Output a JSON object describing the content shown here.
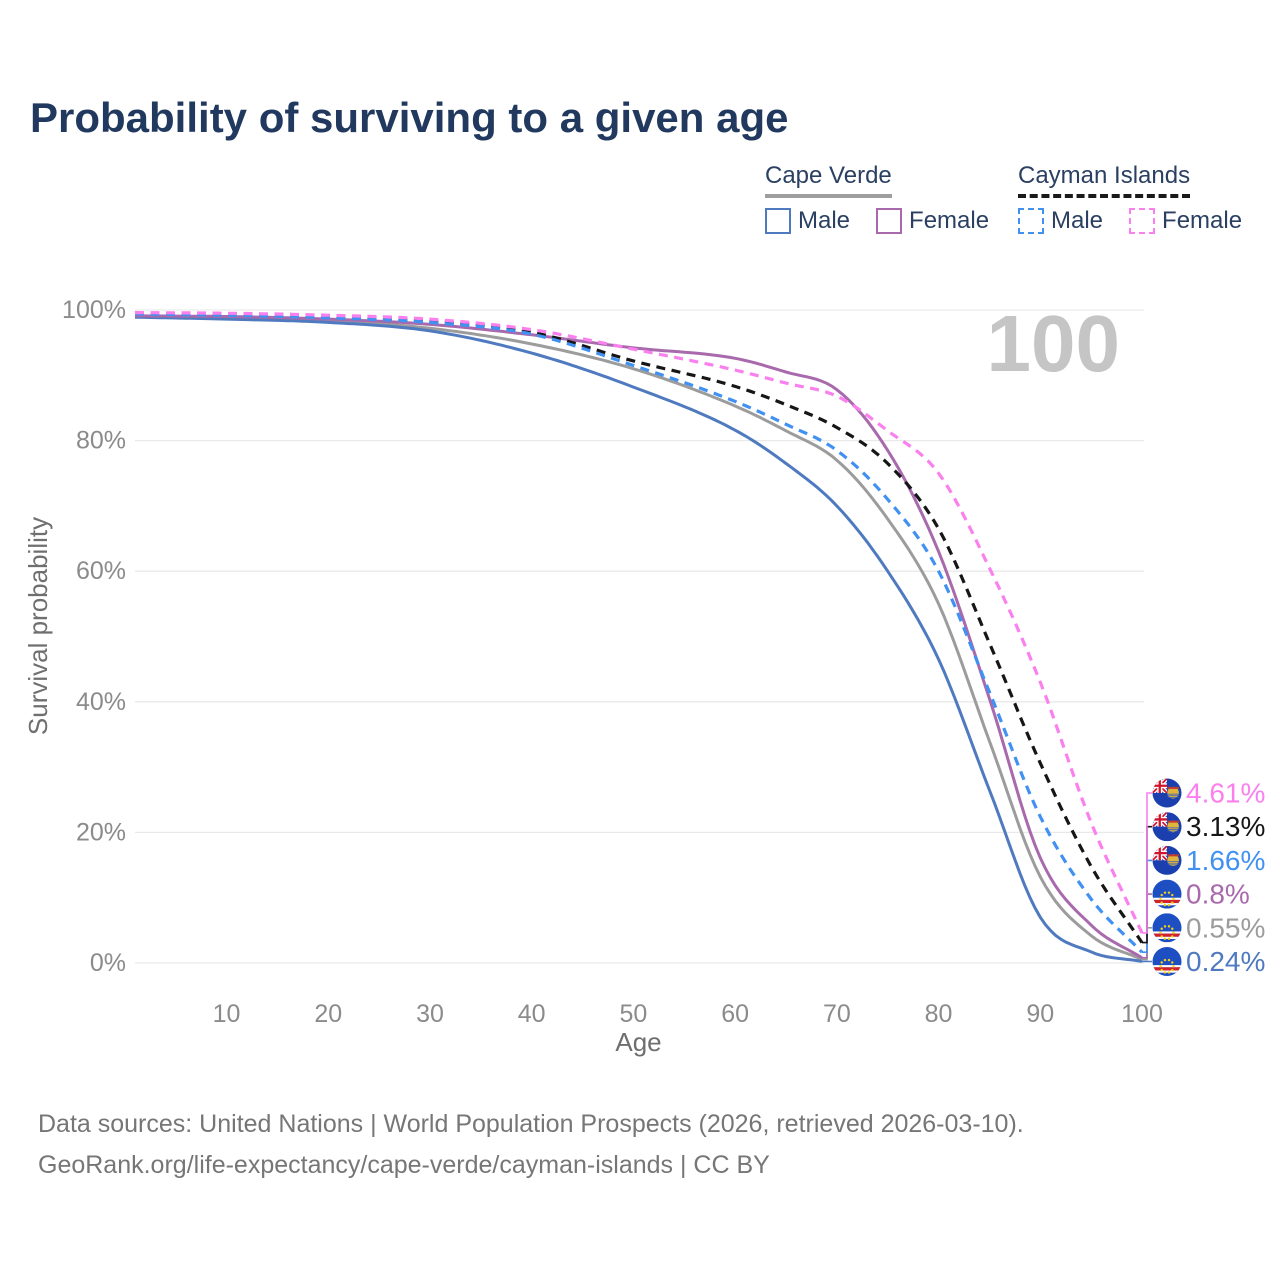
{
  "title": "Probability of surviving to a given age",
  "watermark_age": "100",
  "legend": {
    "groups": [
      {
        "name": "Cape Verde",
        "line_style": "solid",
        "underline_color": "#9e9e9e",
        "items": [
          {
            "label": "Male",
            "color": "#4f7ac0"
          },
          {
            "label": "Female",
            "color": "#a869ad"
          }
        ]
      },
      {
        "name": "Cayman Islands",
        "line_style": "dashed",
        "underline_color": "#1a1a1a",
        "items": [
          {
            "label": "Male",
            "color": "#4191f2"
          },
          {
            "label": "Female",
            "color": "#fa80ee"
          }
        ]
      }
    ]
  },
  "chart_data": {
    "type": "line",
    "title": "Probability of surviving to a given age",
    "xlabel": "Age",
    "ylabel": "Survival probability",
    "xlim": [
      1,
      100
    ],
    "ylim": [
      0,
      100
    ],
    "grid": "horizontal",
    "legend_position": "top-right",
    "watermark": "100",
    "x_ticks": [
      10,
      20,
      30,
      40,
      50,
      60,
      70,
      80,
      90,
      100
    ],
    "y_ticks": [
      {
        "value": 0,
        "label": "0%"
      },
      {
        "value": 20,
        "label": "20%"
      },
      {
        "value": 40,
        "label": "40%"
      },
      {
        "value": 60,
        "label": "60%"
      },
      {
        "value": 80,
        "label": "80%"
      },
      {
        "value": 100,
        "label": "100%"
      }
    ],
    "x": [
      1,
      10,
      20,
      30,
      40,
      50,
      60,
      65,
      70,
      75,
      80,
      85,
      90,
      95,
      100
    ],
    "series": [
      {
        "name": "Cape Verde (both sexes)",
        "country": "cape-verde",
        "sex": "both",
        "color": "#9c9c9c",
        "dashed": false,
        "end_label": "0.55%",
        "end_value": 0.55,
        "values": [
          99.0,
          98.8,
          98.4,
          97.2,
          94.8,
          91.0,
          85.3,
          81.5,
          77.0,
          68.0,
          55.0,
          34.0,
          13.2,
          4.2,
          0.55
        ]
      },
      {
        "name": "Cape Verde Male",
        "country": "cape-verde",
        "sex": "male",
        "color": "#4f7ac0",
        "dashed": false,
        "end_label": "0.24%",
        "end_value": 0.24,
        "values": [
          98.9,
          98.6,
          98.1,
          96.8,
          93.4,
          88.2,
          81.6,
          76.5,
          70.0,
          60.0,
          46.5,
          26.5,
          7.0,
          1.7,
          0.24
        ]
      },
      {
        "name": "Cape Verde Female",
        "country": "cape-verde",
        "sex": "female",
        "color": "#a869ad",
        "dashed": false,
        "end_label": "0.8%",
        "end_value": 0.8,
        "values": [
          99.1,
          99.0,
          98.6,
          97.8,
          96.2,
          94.2,
          92.6,
          90.5,
          87.8,
          78.5,
          63.0,
          40.5,
          16.1,
          5.8,
          0.8
        ]
      },
      {
        "name": "Cayman Islands (both sexes)",
        "country": "cayman-islands",
        "sex": "both",
        "color": "#161616",
        "dashed": true,
        "end_label": "3.13%",
        "end_value": 3.13,
        "values": [
          99.5,
          99.3,
          99.0,
          98.3,
          96.6,
          92.2,
          88.3,
          85.5,
          82.0,
          76.5,
          66.5,
          49.0,
          30.6,
          14.8,
          3.13
        ]
      },
      {
        "name": "Cayman Islands Male",
        "country": "cayman-islands",
        "sex": "male",
        "color": "#4191f2",
        "dashed": true,
        "end_label": "1.66%",
        "end_value": 1.66,
        "values": [
          99.4,
          99.2,
          98.8,
          98.1,
          96.3,
          91.5,
          86.0,
          82.5,
          78.5,
          71.0,
          60.0,
          41.5,
          22.4,
          9.8,
          1.66
        ]
      },
      {
        "name": "Cayman Islands Female",
        "country": "cayman-islands",
        "sex": "female",
        "color": "#fa80ee",
        "dashed": true,
        "end_label": "4.61%",
        "end_value": 4.61,
        "values": [
          99.6,
          99.5,
          99.2,
          98.6,
          97.0,
          94.0,
          90.8,
          88.8,
          86.8,
          81.5,
          75.0,
          60.5,
          43.0,
          21.5,
          4.61
        ]
      }
    ]
  },
  "footer": {
    "line1": "Data sources: United Nations | World Population Prospects (2026, retrieved 2026-03-10).",
    "line2": "GeoRank.org/life-expectancy/cape-verde/cayman-islands | CC BY"
  }
}
